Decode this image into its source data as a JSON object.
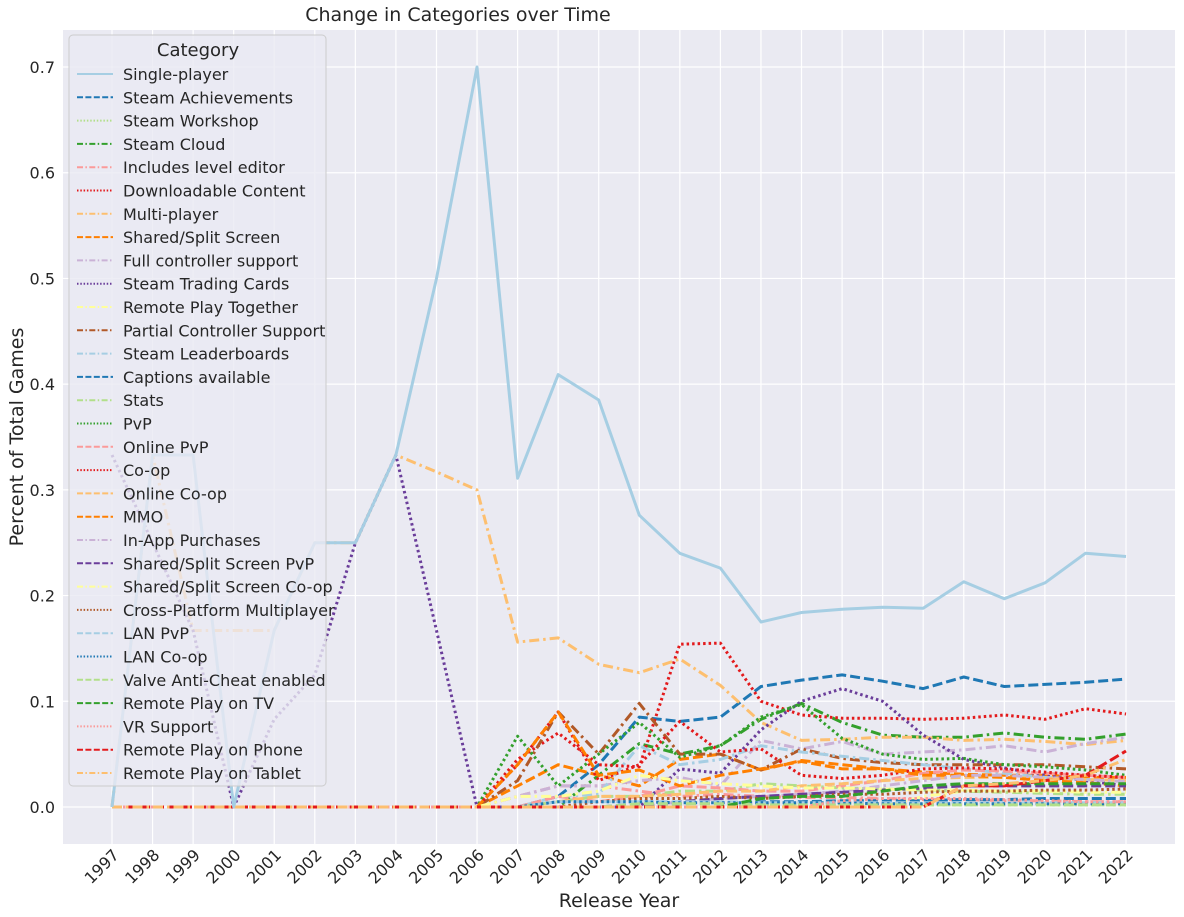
{
  "chart_data": {
    "type": "line",
    "title": "Change in Categories over Time",
    "xlabel": "Release Year",
    "ylabel": "Percent of Total Games",
    "ylim": [
      -0.035,
      0.735
    ],
    "yticks": [
      0.0,
      0.1,
      0.2,
      0.3,
      0.4,
      0.5,
      0.6,
      0.7
    ],
    "ytick_labels": [
      "0.0",
      "0.1",
      "0.2",
      "0.3",
      "0.4",
      "0.5",
      "0.6",
      "0.7"
    ],
    "grid": true,
    "legend_title": "Category",
    "legend_position": "top-left",
    "x": [
      "1997",
      "1998",
      "1999",
      "2000",
      "2001",
      "2002",
      "2003",
      "2004",
      "2005",
      "2006",
      "2007",
      "2008",
      "2009",
      "2010",
      "2011",
      "2012",
      "2013",
      "2014",
      "2015",
      "2016",
      "2017",
      "2018",
      "2019",
      "2020",
      "2021",
      "2022"
    ],
    "series": [
      {
        "name": "Single-player",
        "color": "#a6cee3",
        "dash": "solid",
        "values": [
          0,
          0.333,
          0.333,
          0,
          0.167,
          0.25,
          0.25,
          0.333,
          0.5,
          0.7,
          0.311,
          0.409,
          0.385,
          0.276,
          0.24,
          0.226,
          0.175,
          0.184,
          0.187,
          0.189,
          0.188,
          0.213,
          0.197,
          0.212,
          0.24,
          0.237
        ]
      },
      {
        "name": "Steam Achievements",
        "color": "#1f78b4",
        "dash": "dashed",
        "values": [
          0,
          0,
          0,
          0,
          0,
          0,
          0,
          0,
          0,
          0,
          0,
          0.01,
          0.04,
          0.085,
          0.081,
          0.085,
          0.114,
          0.12,
          0.125,
          0.119,
          0.112,
          0.123,
          0.114,
          0.116,
          0.118,
          0.121
        ]
      },
      {
        "name": "Steam Workshop",
        "color": "#b2df8a",
        "dash": "dotted",
        "values": [
          0,
          0,
          0,
          0,
          0,
          0,
          0,
          0,
          0,
          0,
          0,
          0,
          0,
          0,
          0,
          0,
          0.002,
          0.003,
          0.003,
          0.003,
          0.002,
          0.002,
          0.002,
          0.002,
          0.002,
          0.002
        ]
      },
      {
        "name": "Steam Cloud",
        "color": "#33a02c",
        "dash": "dashdot",
        "values": [
          0,
          0,
          0,
          0,
          0,
          0,
          0,
          0,
          0,
          0,
          0,
          0,
          0.03,
          0.06,
          0.05,
          0.058,
          0.083,
          0.098,
          0.08,
          0.068,
          0.066,
          0.066,
          0.07,
          0.066,
          0.064,
          0.069
        ]
      },
      {
        "name": "Includes level editor",
        "color": "#fb9a99",
        "dash": "dashdot",
        "values": [
          0,
          0,
          0,
          0,
          0,
          0,
          0,
          0,
          0,
          0,
          0.01,
          0.02,
          0.02,
          0.015,
          0.01,
          0.012,
          0.01,
          0.009,
          0.009,
          0.008,
          0.007,
          0.007,
          0.006,
          0.006,
          0.005,
          0.005
        ]
      },
      {
        "name": "Downloadable Content",
        "color": "#e31a1c",
        "dash": "dotted",
        "values": [
          0,
          0,
          0,
          0,
          0,
          0,
          0,
          0,
          0,
          0,
          0.045,
          0.07,
          0.04,
          0.038,
          0.154,
          0.155,
          0.1,
          0.087,
          0.084,
          0.084,
          0.083,
          0.084,
          0.087,
          0.083,
          0.093,
          0.088
        ]
      },
      {
        "name": "Multi-player",
        "color": "#fdbf6f",
        "dash": "dashdot",
        "values": [
          0,
          0.333,
          0.167,
          0.167,
          0.167,
          0.25,
          0.25,
          0.333,
          0.317,
          0.3,
          0.156,
          0.16,
          0.135,
          0.127,
          0.14,
          0.115,
          0.08,
          0.063,
          0.064,
          0.066,
          0.066,
          0.063,
          0.064,
          0.062,
          0.059,
          0.063
        ]
      },
      {
        "name": "Shared/Split Screen",
        "color": "#ff7f00",
        "dash": "dashed",
        "values": [
          0,
          0,
          0,
          0,
          0,
          0,
          0,
          0,
          0,
          0,
          0.02,
          0.04,
          0.03,
          0.02,
          0.045,
          0.05,
          0.035,
          0.044,
          0.04,
          0.036,
          0.033,
          0.031,
          0.03,
          0.03,
          0.028,
          0.028
        ]
      },
      {
        "name": "Full controller support",
        "color": "#cab2d6",
        "dash": "dashdot",
        "values": [
          0,
          0,
          0,
          0,
          0,
          0,
          0,
          0,
          0,
          0,
          0.01,
          0.02,
          0.02,
          0.025,
          0.028,
          0.02,
          0.063,
          0.055,
          0.062,
          0.05,
          0.052,
          0.054,
          0.058,
          0.052,
          0.06,
          0.066
        ]
      },
      {
        "name": "Steam Trading Cards",
        "color": "#6a3d9a",
        "dash": "dotted",
        "values": [
          0.333,
          0.25,
          0.167,
          0,
          0.083,
          0.125,
          0.25,
          0.333,
          0.167,
          0,
          0,
          0,
          0,
          0,
          0.036,
          0.032,
          0.073,
          0.1,
          0.112,
          0.1,
          0.068,
          0.045,
          0.037,
          0.03,
          0.025,
          0.02
        ]
      },
      {
        "name": "Remote Play Together",
        "color": "#ffff99",
        "dash": "dashdot",
        "values": [
          0,
          0,
          0,
          0,
          0,
          0,
          0,
          0,
          0,
          0,
          0,
          0,
          0,
          0,
          0,
          0,
          0,
          0,
          0,
          0,
          0.01,
          0.015,
          0.014,
          0.013,
          0.012,
          0.012
        ]
      },
      {
        "name": "Partial Controller Support",
        "color": "#b15928",
        "dash": "dashdot",
        "values": [
          0,
          0,
          0,
          0,
          0,
          0,
          0,
          0,
          0,
          0,
          0.025,
          0.09,
          0.05,
          0.098,
          0.05,
          0.05,
          0.035,
          0.055,
          0.046,
          0.042,
          0.04,
          0.04,
          0.04,
          0.04,
          0.038,
          0.036
        ]
      },
      {
        "name": "Steam Leaderboards",
        "color": "#a6cee3",
        "dash": "dashdot",
        "values": [
          0,
          0,
          0,
          0,
          0,
          0,
          0,
          0,
          0,
          0,
          0,
          0.01,
          0.012,
          0.058,
          0.04,
          0.045,
          0.058,
          0.052,
          0.048,
          0.044,
          0.04,
          0.036,
          0.032,
          0.028,
          0.026,
          0.025
        ]
      },
      {
        "name": "Captions available",
        "color": "#1f78b4",
        "dash": "dashed",
        "values": [
          0,
          0,
          0,
          0,
          0,
          0,
          0,
          0,
          0,
          0,
          0,
          0,
          0,
          0.003,
          0.003,
          0.004,
          0.005,
          0.005,
          0.006,
          0.006,
          0.006,
          0.007,
          0.007,
          0.008,
          0.008,
          0.008
        ]
      },
      {
        "name": "Stats",
        "color": "#b2df8a",
        "dash": "dashdot",
        "values": [
          0,
          0,
          0,
          0,
          0,
          0,
          0,
          0,
          0,
          0,
          0,
          0.005,
          0.01,
          0.01,
          0.015,
          0.015,
          0.022,
          0.02,
          0.018,
          0.017,
          0.016,
          0.015,
          0.014,
          0.013,
          0.012,
          0.012
        ]
      },
      {
        "name": "PvP",
        "color": "#33a02c",
        "dash": "dotted",
        "values": [
          0,
          0,
          0,
          0,
          0,
          0,
          0,
          0,
          0,
          0,
          0.067,
          0.02,
          0.05,
          0.08,
          0.047,
          0.058,
          0.085,
          0.097,
          0.065,
          0.05,
          0.045,
          0.046,
          0.04,
          0.038,
          0.035,
          0.03
        ]
      },
      {
        "name": "Online PvP",
        "color": "#fb9a99",
        "dash": "dashed",
        "values": [
          0,
          0,
          0,
          0,
          0,
          0,
          0,
          0,
          0,
          0,
          0,
          0.01,
          0.005,
          0.01,
          0.02,
          0.018,
          0.015,
          0.015,
          0.02,
          0.025,
          0.032,
          0.035,
          0.034,
          0.032,
          0.03,
          0.028
        ]
      },
      {
        "name": "Co-op",
        "color": "#e31a1c",
        "dash": "dotted",
        "values": [
          0,
          0,
          0,
          0,
          0,
          0,
          0,
          0,
          0,
          0,
          0.04,
          0.09,
          0.025,
          0.04,
          0.081,
          0.052,
          0.055,
          0.03,
          0.027,
          0.03,
          0.036,
          0.037,
          0.036,
          0.033,
          0.03,
          0.028
        ]
      },
      {
        "name": "Online Co-op",
        "color": "#fdbf6f",
        "dash": "dashed",
        "values": [
          0,
          0,
          0,
          0,
          0,
          0,
          0,
          0,
          0,
          0,
          0,
          0.005,
          0.01,
          0.01,
          0.012,
          0.015,
          0.015,
          0.02,
          0.022,
          0.025,
          0.027,
          0.028,
          0.028,
          0.027,
          0.026,
          0.025
        ]
      },
      {
        "name": "MMO",
        "color": "#ff7f00",
        "dash": "dashed",
        "values": [
          0,
          0,
          0,
          0,
          0,
          0,
          0,
          0,
          0,
          0,
          0.04,
          0.09,
          0.03,
          0.035,
          0.02,
          0.03,
          0.036,
          0.043,
          0.036,
          0.036,
          0.03,
          0.03,
          0.028,
          0.025,
          0.023,
          0.02
        ]
      },
      {
        "name": "In-App Purchases",
        "color": "#cab2d6",
        "dash": "dashdot",
        "values": [
          0,
          0,
          0,
          0,
          0,
          0,
          0,
          0,
          0,
          0,
          0,
          0,
          0,
          0,
          0.005,
          0.008,
          0.01,
          0.012,
          0.015,
          0.02,
          0.025,
          0.03,
          0.03,
          0.028,
          0.026,
          0.024
        ]
      },
      {
        "name": "Shared/Split Screen PvP",
        "color": "#6a3d9a",
        "dash": "dashed",
        "values": [
          0,
          0,
          0,
          0,
          0,
          0,
          0,
          0,
          0,
          0,
          0,
          0,
          0,
          0,
          0.005,
          0.008,
          0.01,
          0.012,
          0.014,
          0.016,
          0.018,
          0.02,
          0.02,
          0.02,
          0.02,
          0.02
        ]
      },
      {
        "name": "Shared/Split Screen Co-op",
        "color": "#ffff99",
        "dash": "dashdot",
        "values": [
          0,
          0,
          0,
          0,
          0,
          0,
          0,
          0,
          0,
          0,
          0.01,
          0.01,
          0.015,
          0.03,
          0.025,
          0.022,
          0.02,
          0.018,
          0.018,
          0.017,
          0.016,
          0.016,
          0.015,
          0.015,
          0.014,
          0.014
        ]
      },
      {
        "name": "Cross-Platform Multiplayer",
        "color": "#b15928",
        "dash": "dotted",
        "values": [
          0,
          0,
          0,
          0,
          0,
          0,
          0,
          0,
          0,
          0,
          0,
          0,
          0.005,
          0.008,
          0.008,
          0.01,
          0.008,
          0.01,
          0.012,
          0.012,
          0.014,
          0.015,
          0.015,
          0.016,
          0.016,
          0.017
        ]
      },
      {
        "name": "LAN PvP",
        "color": "#a6cee3",
        "dash": "dashed",
        "values": [
          0,
          0,
          0,
          0,
          0,
          0,
          0,
          0,
          0,
          0,
          0,
          0.005,
          0.005,
          0.005,
          0.005,
          0.005,
          0.004,
          0.004,
          0.004,
          0.004,
          0.004,
          0.004,
          0.004,
          0.004,
          0.004,
          0.004
        ]
      },
      {
        "name": "LAN Co-op",
        "color": "#1f78b4",
        "dash": "dotted",
        "values": [
          0,
          0,
          0,
          0,
          0,
          0,
          0,
          0,
          0,
          0,
          0,
          0.005,
          0.005,
          0.005,
          0.004,
          0.004,
          0.004,
          0.004,
          0.004,
          0.003,
          0.003,
          0.003,
          0.003,
          0.003,
          0.003,
          0.003
        ]
      },
      {
        "name": "Valve Anti-Cheat enabled",
        "color": "#b2df8a",
        "dash": "dashed",
        "values": [
          0,
          0,
          0,
          0,
          0,
          0,
          0,
          0,
          0,
          0,
          0,
          0,
          0,
          0.003,
          0.003,
          0.003,
          0.002,
          0.002,
          0.002,
          0.002,
          0.002,
          0.002,
          0.002,
          0.002,
          0.002,
          0.002
        ]
      },
      {
        "name": "Remote Play on TV",
        "color": "#33a02c",
        "dash": "dashed",
        "values": [
          0,
          0,
          0,
          0,
          0,
          0,
          0,
          0,
          0,
          0,
          0,
          0,
          0,
          0,
          0,
          0,
          0.008,
          0.01,
          0.01,
          0.015,
          0.02,
          0.022,
          0.022,
          0.022,
          0.022,
          0.022
        ]
      },
      {
        "name": "VR Support",
        "color": "#fb9a99",
        "dash": "dotted",
        "values": [
          0,
          0,
          0,
          0,
          0,
          0,
          0,
          0,
          0,
          0,
          0,
          0,
          0,
          0,
          0,
          0,
          0,
          0,
          0.006,
          0.008,
          0.008,
          0.008,
          0.007,
          0.006,
          0.005,
          0.005
        ]
      },
      {
        "name": "Remote Play on Phone",
        "color": "#e31a1c",
        "dash": "dashed",
        "values": [
          0,
          0,
          0,
          0,
          0,
          0,
          0,
          0,
          0,
          0,
          0,
          0,
          0,
          0,
          0,
          0,
          0,
          0,
          0,
          0,
          0,
          0.02,
          0.02,
          0.025,
          0.03,
          0.053
        ]
      },
      {
        "name": "Remote Play on Tablet",
        "color": "#fdbf6f",
        "dash": "dashdot",
        "values": [
          0,
          0,
          0,
          0,
          0,
          0,
          0,
          0,
          0,
          0,
          0,
          0,
          0,
          0,
          0,
          0,
          0,
          0,
          0,
          0,
          0,
          0.02,
          0.022,
          0.025,
          0.03,
          0.045
        ]
      }
    ]
  }
}
